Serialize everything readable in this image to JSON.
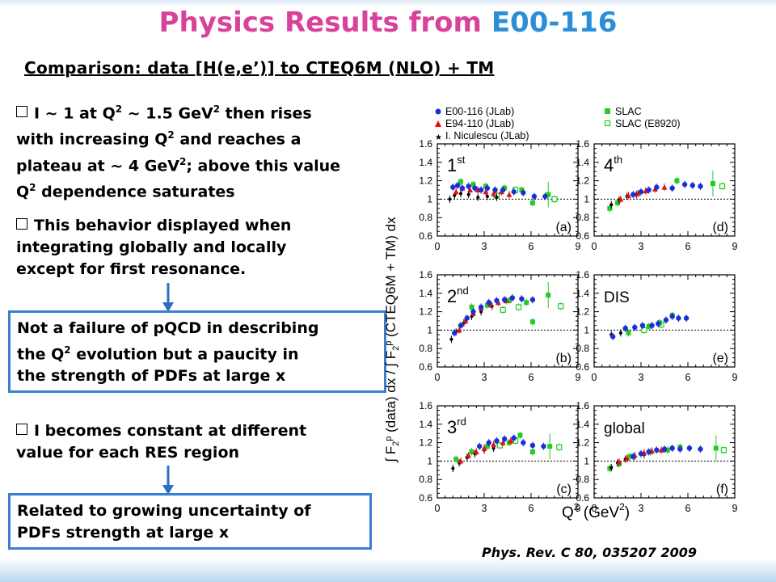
{
  "slide": {
    "title_main": "Physics Results from",
    "title_accent": "E00-116",
    "subtitle": "Comparison: data [H(e,e’)] to CTEQ6M (NLO) + TM",
    "bullet1": [
      "I ~ 1 at Q",
      "2",
      " ~ 1.5 GeV",
      "2",
      " then rises",
      "with increasing Q",
      "2",
      " and reaches a",
      "plateau at ~ 4 GeV",
      "2",
      "; above this value",
      "Q",
      "2",
      " dependence saturates"
    ],
    "bullet2": [
      "This behavior displayed when",
      "integrating globally and locally",
      "except for first resonance."
    ],
    "box1": [
      "Not a failure of pQCD in describing",
      "the Q",
      "2",
      " evolution but a paucity in",
      "the strength of PDFs at large x"
    ],
    "bullet3": [
      "I becomes constant at different",
      "value for each RES region"
    ],
    "box2": [
      "Related to growing uncertainty of",
      "PDFs strength at large x"
    ],
    "citation": "Phys. Rev. C 80, 035207 2009",
    "colors": {
      "title": "#d9429a",
      "title_accent": "#2a8fd6",
      "box_border": "#3a7fd0",
      "arrow": "#2a6fc0"
    }
  },
  "chart_data": {
    "type": "scatter",
    "ylabel_parts": [
      "∫ F",
      "2",
      "p",
      " (data) dx / ∫ F",
      "2",
      "p",
      " (CTEQ6M + TM) dx"
    ],
    "xlabel_parts": [
      "Q",
      "2",
      " (GeV",
      "2",
      ")"
    ],
    "xlim": [
      0,
      9
    ],
    "ylim": [
      0.6,
      1.6
    ],
    "xticks": [
      "0",
      "3",
      "6",
      "9"
    ],
    "yticks": [
      "0.6",
      "0.8",
      "1",
      "1.2",
      "1.4",
      "1.6"
    ],
    "reference_line": 1,
    "legend": [
      {
        "name": "E00-116 (JLab)",
        "marker": "circle",
        "color": "#1a2fd6"
      },
      {
        "name": "E94-110 (JLab)",
        "marker": "triangle",
        "color": "#e01010"
      },
      {
        "name": "I. Niculescu (JLab)",
        "marker": "star",
        "color": "#000000"
      },
      {
        "name": "SLAC",
        "marker": "square",
        "color": "#22cc22"
      },
      {
        "name": "SLAC (E8920)",
        "marker": "open-square",
        "color": "#22cc22"
      }
    ],
    "panels": [
      {
        "label": "1st",
        "label_base": "1",
        "label_sup": "st",
        "tag": "(a)",
        "series": {
          "e00116": [
            [
              1.0,
              1.13
            ],
            [
              1.3,
              1.15
            ],
            [
              1.6,
              1.12
            ],
            [
              2.0,
              1.14
            ],
            [
              2.4,
              1.12
            ],
            [
              2.8,
              1.1
            ],
            [
              3.2,
              1.12
            ],
            [
              3.7,
              1.1
            ],
            [
              4.2,
              1.1
            ],
            [
              4.9,
              1.08
            ],
            [
              5.5,
              1.07
            ],
            [
              6.2,
              1.03
            ],
            [
              6.9,
              1.03
            ]
          ],
          "e94110": [
            [
              1.2,
              1.08
            ],
            [
              1.6,
              1.12
            ],
            [
              2.1,
              1.1
            ],
            [
              2.6,
              1.1
            ],
            [
              3.1,
              1.08
            ],
            [
              3.6,
              1.06
            ],
            [
              4.1,
              1.08
            ],
            [
              4.6,
              1.05
            ]
          ],
          "niculescu": [
            [
              0.8,
              1.0
            ],
            [
              1.1,
              1.04
            ],
            [
              1.5,
              1.06
            ],
            [
              2.0,
              1.05
            ],
            [
              2.6,
              1.02
            ],
            [
              3.2,
              1.03
            ],
            [
              3.8,
              1.02
            ]
          ],
          "slac": [
            [
              1.5,
              1.19
            ],
            [
              2.3,
              1.16
            ],
            [
              3.1,
              1.14
            ],
            [
              4.3,
              1.12
            ],
            [
              5.4,
              1.1
            ],
            [
              6.1,
              0.96
            ],
            [
              7.1,
              1.05
            ]
          ],
          "slac8920": [
            [
              3.8,
              1.04
            ],
            [
              5.0,
              1.1
            ],
            [
              7.5,
              1.0
            ]
          ]
        }
      },
      {
        "label": "4th",
        "label_base": "4",
        "label_sup": "th",
        "tag": "(d)",
        "series": {
          "e00116": [
            [
              2.5,
              1.05
            ],
            [
              3.0,
              1.08
            ],
            [
              3.5,
              1.1
            ],
            [
              4.0,
              1.13
            ],
            [
              5.0,
              1.12
            ],
            [
              5.8,
              1.16
            ],
            [
              6.3,
              1.15
            ],
            [
              6.8,
              1.14
            ]
          ],
          "e94110": [
            [
              1.7,
              1.0
            ],
            [
              2.2,
              1.04
            ],
            [
              2.8,
              1.06
            ],
            [
              3.3,
              1.09
            ],
            [
              3.9,
              1.11
            ],
            [
              4.5,
              1.13
            ]
          ],
          "niculescu": [
            [
              1.1,
              0.94
            ],
            [
              1.6,
              0.99
            ],
            [
              2.1,
              1.03
            ],
            [
              2.7,
              1.05
            ]
          ],
          "slac": [
            [
              1.0,
              0.9
            ],
            [
              1.5,
              0.96
            ],
            [
              5.3,
              1.2
            ],
            [
              7.6,
              1.17
            ]
          ],
          "slac8920": [
            [
              8.2,
              1.14
            ]
          ]
        }
      },
      {
        "label": "2nd",
        "label_base": "2",
        "label_sup": "nd",
        "tag": "(b)",
        "series": {
          "e00116": [
            [
              1.1,
              0.97
            ],
            [
              1.5,
              1.05
            ],
            [
              1.9,
              1.13
            ],
            [
              2.3,
              1.2
            ],
            [
              2.8,
              1.25
            ],
            [
              3.3,
              1.3
            ],
            [
              3.8,
              1.32
            ],
            [
              4.3,
              1.33
            ],
            [
              4.8,
              1.35
            ],
            [
              5.4,
              1.34
            ],
            [
              6.1,
              1.33
            ]
          ],
          "e94110": [
            [
              1.4,
              1.0
            ],
            [
              1.8,
              1.1
            ],
            [
              2.3,
              1.18
            ],
            [
              2.8,
              1.24
            ],
            [
              3.4,
              1.28
            ],
            [
              3.9,
              1.3
            ],
            [
              4.4,
              1.32
            ]
          ],
          "niculescu": [
            [
              0.9,
              0.9
            ],
            [
              1.2,
              0.98
            ],
            [
              1.7,
              1.08
            ],
            [
              2.2,
              1.15
            ],
            [
              2.8,
              1.2
            ],
            [
              3.5,
              1.26
            ]
          ],
          "slac": [
            [
              2.2,
              1.25
            ],
            [
              3.2,
              1.27
            ],
            [
              4.6,
              1.32
            ],
            [
              5.7,
              1.3
            ],
            [
              6.1,
              1.09
            ],
            [
              7.1,
              1.38
            ]
          ],
          "slac8920": [
            [
              4.2,
              1.22
            ],
            [
              5.2,
              1.25
            ],
            [
              7.9,
              1.26
            ]
          ]
        }
      },
      {
        "label": "DIS",
        "tag": "(e)",
        "series": {
          "e00116": [
            [
              1.2,
              0.93
            ],
            [
              2.0,
              1.02
            ],
            [
              2.6,
              1.03
            ],
            [
              3.1,
              1.05
            ],
            [
              3.7,
              1.05
            ],
            [
              4.1,
              1.07
            ],
            [
              4.6,
              1.11
            ],
            [
              5.0,
              1.15
            ],
            [
              5.4,
              1.13
            ],
            [
              5.9,
              1.13
            ]
          ],
          "e94110": [],
          "niculescu": [
            [
              1.1,
              0.95
            ],
            [
              1.7,
              0.97
            ]
          ],
          "slac": [
            [
              2.2,
              0.97
            ],
            [
              3.5,
              1.04
            ],
            [
              4.2,
              1.08
            ],
            [
              5.0,
              1.16
            ]
          ],
          "slac8920": [
            [
              3.2,
              1.0
            ],
            [
              4.3,
              1.06
            ]
          ]
        }
      },
      {
        "label": "3rd",
        "label_base": "3",
        "label_sup": "rd",
        "tag": "(c)",
        "series": {
          "e00116": [
            [
              2.7,
              1.16
            ],
            [
              3.3,
              1.2
            ],
            [
              3.8,
              1.22
            ],
            [
              4.3,
              1.24
            ],
            [
              4.9,
              1.25
            ],
            [
              5.5,
              1.2
            ],
            [
              6.1,
              1.17
            ],
            [
              6.8,
              1.16
            ]
          ],
          "e94110": [
            [
              1.5,
              1.0
            ],
            [
              2.0,
              1.06
            ],
            [
              2.5,
              1.1
            ],
            [
              3.0,
              1.14
            ],
            [
              3.6,
              1.18
            ],
            [
              4.2,
              1.2
            ],
            [
              4.7,
              1.22
            ]
          ],
          "niculescu": [
            [
              1.0,
              0.92
            ],
            [
              1.4,
              0.98
            ],
            [
              1.9,
              1.04
            ],
            [
              2.4,
              1.08
            ],
            [
              3.0,
              1.12
            ],
            [
              3.6,
              1.14
            ]
          ],
          "slac": [
            [
              1.2,
              1.02
            ],
            [
              2.2,
              1.1
            ],
            [
              3.2,
              1.16
            ],
            [
              4.6,
              1.2
            ],
            [
              5.3,
              1.28
            ],
            [
              6.1,
              1.1
            ],
            [
              7.2,
              1.16
            ]
          ],
          "slac8920": [
            [
              4.0,
              1.17
            ],
            [
              5.0,
              1.22
            ],
            [
              7.8,
              1.15
            ]
          ]
        }
      },
      {
        "label": "global",
        "tag": "(f)",
        "series": {
          "e00116": [
            [
              2.5,
              1.05
            ],
            [
              3.0,
              1.08
            ],
            [
              3.5,
              1.1
            ],
            [
              4.0,
              1.12
            ],
            [
              4.5,
              1.13
            ],
            [
              5.0,
              1.14
            ],
            [
              5.5,
              1.13
            ],
            [
              6.1,
              1.14
            ],
            [
              6.8,
              1.13
            ]
          ],
          "e94110": [
            [
              1.6,
              0.99
            ],
            [
              2.1,
              1.03
            ],
            [
              2.6,
              1.06
            ],
            [
              3.2,
              1.09
            ],
            [
              3.7,
              1.11
            ],
            [
              4.3,
              1.12
            ]
          ],
          "niculescu": [
            [
              1.1,
              0.93
            ],
            [
              1.5,
              0.98
            ],
            [
              2.0,
              1.02
            ],
            [
              2.6,
              1.05
            ],
            [
              3.2,
              1.07
            ]
          ],
          "slac": [
            [
              1.0,
              0.92
            ],
            [
              1.6,
              0.97
            ],
            [
              2.3,
              1.05
            ],
            [
              3.6,
              1.1
            ],
            [
              4.7,
              1.12
            ],
            [
              5.5,
              1.15
            ],
            [
              7.8,
              1.14
            ]
          ],
          "slac8920": [
            [
              8.3,
              1.12
            ]
          ]
        }
      }
    ]
  }
}
